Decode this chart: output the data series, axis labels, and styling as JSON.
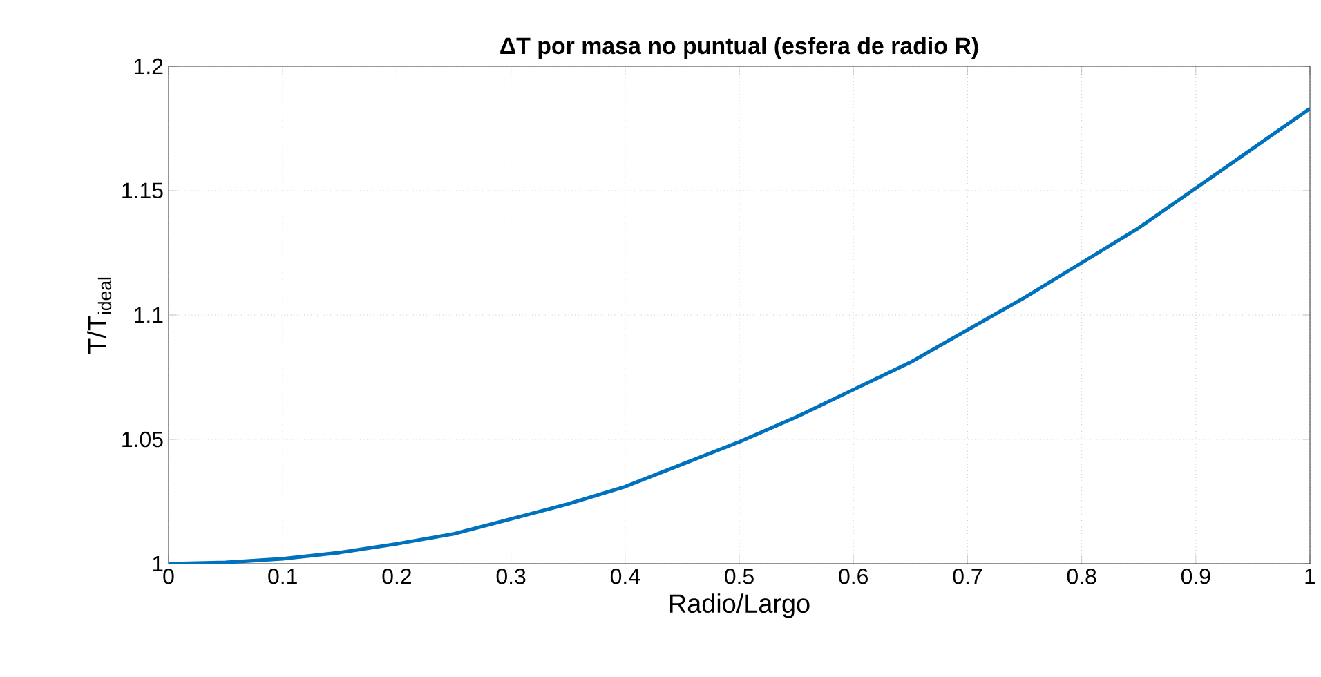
{
  "chart_data": {
    "type": "line",
    "title": "**ΔT por masa no puntual (esfera de radio R)**",
    "xlabel": "Radio/Largo",
    "ylabel": "T/T$_{ideal}$",
    "x": [
      0,
      0.05,
      0.1,
      0.15,
      0.2,
      0.25,
      0.3,
      0.35,
      0.4,
      0.45,
      0.5,
      0.55,
      0.6,
      0.65,
      0.7,
      0.75,
      0.8,
      0.85,
      0.9,
      0.95,
      1
    ],
    "series": [
      {
        "color": "#0072bd",
        "values": [
          1.0,
          1.0005,
          1.002,
          1.0045,
          1.008,
          1.012,
          1.018,
          1.024,
          1.031,
          1.04,
          1.049,
          1.059,
          1.07,
          1.081,
          1.094,
          1.107,
          1.121,
          1.135,
          1.151,
          1.167,
          1.183
        ]
      }
    ],
    "xlim": [
      0,
      1
    ],
    "ylim": [
      1,
      1.2
    ],
    "xticks": [
      0,
      0.1,
      0.2,
      0.3,
      0.4,
      0.5,
      0.6,
      0.7,
      0.8,
      0.9,
      1
    ],
    "yticks": [
      1,
      1.05,
      1.1,
      1.15,
      1.2
    ],
    "grid": true,
    "marker": "none",
    "line_style": "solid"
  }
}
